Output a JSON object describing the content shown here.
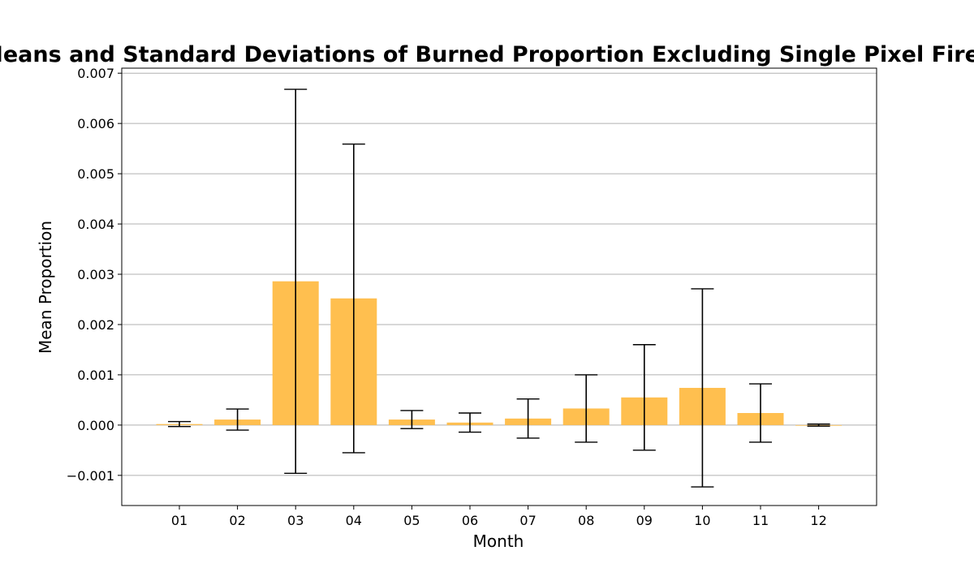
{
  "chart_data": {
    "type": "bar",
    "title": "Means and Standard Deviations of Burned Proportion Excluding Single Pixel Fires",
    "xlabel": "Month",
    "ylabel": "Mean Proportion",
    "categories": [
      "01",
      "02",
      "03",
      "04",
      "05",
      "06",
      "07",
      "08",
      "09",
      "10",
      "11",
      "12"
    ],
    "values": [
      2e-05,
      0.00011,
      0.00286,
      0.00252,
      0.00011,
      5e-05,
      0.00013,
      0.00033,
      0.00055,
      0.00074,
      0.00024,
      0.0
    ],
    "std": [
      5e-05,
      0.00021,
      0.00382,
      0.00307,
      0.00018,
      0.00019,
      0.00039,
      0.00067,
      0.00105,
      0.00197,
      0.00058,
      2e-05
    ],
    "ylim": [
      -0.0016,
      0.0071
    ],
    "yticks": [
      -0.001,
      0.0,
      0.001,
      0.002,
      0.003,
      0.004,
      0.005,
      0.006,
      0.007
    ],
    "ytick_labels": [
      "−0.001",
      "0.000",
      "0.001",
      "0.002",
      "0.003",
      "0.004",
      "0.005",
      "0.006",
      "0.007"
    ],
    "grid": "y",
    "bar_color": "#ffbf4f",
    "errorbar_color": "#000000"
  }
}
